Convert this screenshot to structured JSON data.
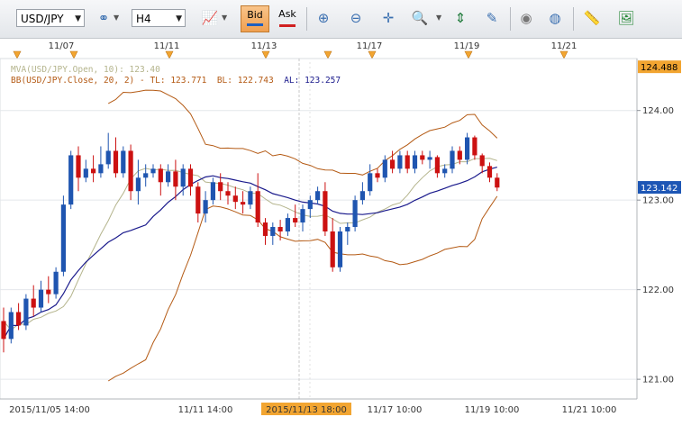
{
  "toolbar": {
    "symbol": "USD/JPY",
    "timeframe": "H4",
    "bid_label": "Bid",
    "ask_label": "Ask",
    "icons": [
      "link-icon",
      "line-chart-icon",
      "new-order-icon",
      "close-order-icon",
      "crosshair-icon",
      "zoom-icon",
      "indicator-icon",
      "text-edit-icon",
      "eye-icon",
      "globe-icon",
      "ruler-icon",
      "picture-icon"
    ]
  },
  "indicators": {
    "mva": "MVA(USD/JPY.Open, 10): 123.40",
    "bb_prefix": "BB(USD/JPY.Close, 20, 2) -",
    "bb_tl": "TL: 123.771",
    "bb_bl": "BL: 122.743",
    "bb_al": "AL: 123.257"
  },
  "chart_data": {
    "type": "candlestick",
    "instrument": "USD/JPY",
    "timeframe": "H4",
    "ylim": [
      120.78,
      124.58
    ],
    "y_ticks": [
      121.0,
      122.0,
      123.0,
      124.0
    ],
    "price_flags": [
      {
        "value": 124.488,
        "label": "124.488"
      },
      {
        "value": 123.142,
        "label": "123.142"
      }
    ],
    "top_date_labels": [
      "11/07",
      "11/11",
      "11/13",
      "11/17",
      "11/19",
      "11/21"
    ],
    "bottom_time_labels": [
      "2015/11/05 14:00",
      "11/11 14:00",
      "2015/11/13 18:00",
      "11/17 10:00",
      "11/19 10:00",
      "11/21 10:00"
    ],
    "highlighted_time": "2015/11/13 18:00",
    "candles": [
      [
        121.65,
        121.8,
        121.3,
        121.45
      ],
      [
        121.45,
        121.8,
        121.4,
        121.75
      ],
      [
        121.75,
        121.85,
        121.55,
        121.6
      ],
      [
        121.6,
        121.95,
        121.55,
        121.9
      ],
      [
        121.9,
        122.05,
        121.7,
        121.8
      ],
      [
        121.8,
        122.1,
        121.75,
        122.0
      ],
      [
        122.0,
        122.15,
        121.85,
        121.95
      ],
      [
        121.95,
        122.25,
        121.9,
        122.2
      ],
      [
        122.2,
        123.05,
        122.15,
        122.95
      ],
      [
        122.95,
        123.55,
        122.9,
        123.5
      ],
      [
        123.5,
        123.6,
        123.1,
        123.25
      ],
      [
        123.25,
        123.45,
        123.2,
        123.35
      ],
      [
        123.35,
        123.5,
        123.2,
        123.3
      ],
      [
        123.3,
        123.6,
        123.25,
        123.4
      ],
      [
        123.4,
        123.75,
        123.35,
        123.55
      ],
      [
        123.55,
        123.7,
        123.25,
        123.3
      ],
      [
        123.3,
        123.6,
        123.25,
        123.55
      ],
      [
        123.55,
        123.62,
        123.0,
        123.1
      ],
      [
        123.1,
        123.45,
        122.95,
        123.25
      ],
      [
        123.25,
        123.4,
        123.15,
        123.3
      ],
      [
        123.3,
        123.4,
        123.25,
        123.35
      ],
      [
        123.35,
        123.4,
        123.05,
        123.2
      ],
      [
        123.2,
        123.4,
        123.15,
        123.32
      ],
      [
        123.32,
        123.45,
        123.0,
        123.15
      ],
      [
        123.15,
        123.4,
        123.05,
        123.35
      ],
      [
        123.35,
        123.4,
        123.05,
        123.15
      ],
      [
        123.15,
        123.2,
        122.75,
        122.85
      ],
      [
        122.85,
        123.1,
        122.75,
        123.0
      ],
      [
        123.0,
        123.25,
        122.95,
        123.2
      ],
      [
        123.2,
        123.3,
        123.0,
        123.1
      ],
      [
        123.1,
        123.2,
        122.95,
        123.05
      ],
      [
        123.05,
        123.15,
        122.9,
        122.98
      ],
      [
        122.98,
        123.1,
        122.85,
        122.95
      ],
      [
        122.95,
        123.15,
        122.9,
        123.1
      ],
      [
        123.1,
        123.3,
        122.7,
        122.75
      ],
      [
        122.75,
        122.8,
        122.5,
        122.6
      ],
      [
        122.6,
        122.75,
        122.5,
        122.7
      ],
      [
        122.7,
        122.78,
        122.55,
        122.65
      ],
      [
        122.65,
        122.85,
        122.6,
        122.8
      ],
      [
        122.8,
        122.95,
        122.7,
        122.75
      ],
      [
        122.75,
        122.95,
        122.65,
        122.9
      ],
      [
        122.9,
        123.05,
        122.8,
        123.0
      ],
      [
        123.0,
        123.15,
        122.95,
        123.1
      ],
      [
        123.1,
        123.2,
        122.6,
        122.65
      ],
      [
        122.65,
        122.8,
        122.2,
        122.25
      ],
      [
        122.25,
        122.7,
        122.2,
        122.65
      ],
      [
        122.65,
        122.75,
        122.5,
        122.7
      ],
      [
        122.7,
        123.05,
        122.65,
        123.0
      ],
      [
        123.0,
        123.2,
        122.95,
        123.1
      ],
      [
        123.1,
        123.4,
        123.05,
        123.3
      ],
      [
        123.3,
        123.35,
        123.2,
        123.25
      ],
      [
        123.25,
        123.5,
        123.2,
        123.45
      ],
      [
        123.45,
        123.55,
        123.3,
        123.35
      ],
      [
        123.35,
        123.55,
        123.3,
        123.5
      ],
      [
        123.5,
        123.55,
        123.3,
        123.35
      ],
      [
        123.35,
        123.55,
        123.3,
        123.5
      ],
      [
        123.5,
        123.55,
        123.4,
        123.45
      ],
      [
        123.45,
        123.55,
        123.35,
        123.48
      ],
      [
        123.48,
        123.5,
        123.25,
        123.3
      ],
      [
        123.3,
        123.4,
        123.25,
        123.35
      ],
      [
        123.35,
        123.6,
        123.3,
        123.55
      ],
      [
        123.55,
        123.6,
        123.4,
        123.45
      ],
      [
        123.45,
        123.75,
        123.4,
        123.7
      ],
      [
        123.7,
        123.72,
        123.45,
        123.5
      ],
      [
        123.5,
        123.52,
        123.3,
        123.38
      ],
      [
        123.38,
        123.42,
        123.2,
        123.25
      ],
      [
        123.25,
        123.3,
        123.1,
        123.14
      ]
    ]
  }
}
